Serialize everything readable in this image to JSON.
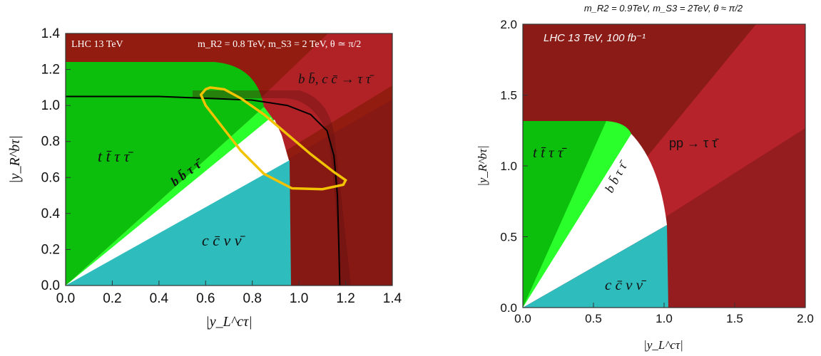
{
  "chart_data": [
    {
      "type": "area",
      "panel": "left",
      "xlim": [
        0,
        1.4
      ],
      "ylim": [
        0,
        1.4
      ],
      "xticks": [
        "0.0",
        "0.2",
        "0.4",
        "0.6",
        "0.8",
        "1.0",
        "1.2",
        "1.4"
      ],
      "yticks": [
        "0.0",
        "0.2",
        "0.4",
        "0.6",
        "0.8",
        "1.0",
        "1.2",
        "1.4"
      ],
      "xlabel": "|y_L^cτ|",
      "ylabel": "|y_R^bτ|",
      "annotations": {
        "experiment": "LHC 13 TeV",
        "params": "m_R2 = 0.8 TeV,  m_S3 = 2 TeV,  θ ≃ π/2",
        "region_tt": "t t̄ τ τ̄",
        "region_bb": "b b̄ τ τ̄",
        "region_cc": "c c̄ ν ν̄",
        "region_ditau": "b b̄, c c̄ → τ τ̄"
      },
      "regions": {
        "tt_boundary_y": 1.25,
        "bb_wedge_slopes": [
          1.0,
          1.45
        ],
        "cc_wedge_slope": 0.71,
        "cc_boundary_x": 0.97,
        "ditau_excluded_radius_approx": 0.97
      },
      "black_curve": {
        "x": [
          0.0,
          0.4,
          0.6,
          0.8,
          0.95,
          1.05,
          1.12,
          1.15,
          1.165,
          1.17,
          1.175
        ],
        "y": [
          1.05,
          1.05,
          1.04,
          1.03,
          1.0,
          0.95,
          0.86,
          0.72,
          0.5,
          0.25,
          0.0
        ]
      },
      "yellow_contour": {
        "x": [
          0.6,
          0.62,
          0.68,
          0.75,
          0.85,
          0.95,
          1.05,
          1.15,
          1.2,
          1.19,
          1.1,
          0.97,
          0.85,
          0.75,
          0.66,
          0.6,
          0.58,
          0.6
        ],
        "y": [
          1.09,
          1.1,
          1.09,
          1.04,
          0.95,
          0.84,
          0.73,
          0.63,
          0.585,
          0.56,
          0.535,
          0.54,
          0.62,
          0.75,
          0.9,
          1.0,
          1.06,
          1.09
        ]
      }
    },
    {
      "type": "area",
      "panel": "right",
      "title": "m_R2 = 0.9TeV, m_S3 = 2TeV, θ ≈ π/2",
      "xlim": [
        0,
        2.0
      ],
      "ylim": [
        0,
        2.0
      ],
      "xticks": [
        "0.0",
        "0.5",
        "1.0",
        "1.5",
        "2.0"
      ],
      "yticks": [
        "0.0",
        "0.5",
        "1.0",
        "1.5",
        "2.0"
      ],
      "xlabel": "|y_L^cτ|",
      "ylabel": "|y_R^bτ|",
      "annotations": {
        "experiment": "LHC 13 TeV,  100 fb⁻¹",
        "region_tt": "t t̄ τ τ̄",
        "region_bb": "b b̄ τ τ̄",
        "region_cc": "c c̄ ν ν̄",
        "region_ditau": "pp → τ τ̄"
      },
      "regions": {
        "tt_boundary_y": 1.32,
        "bb_wedge_slopes": [
          1.2,
          1.8
        ],
        "cc_wedge_slope": 0.57,
        "cc_boundary_x": 1.03
      }
    }
  ],
  "colors": {
    "green": "#0cbf0c",
    "light_green": "#2bff2b",
    "cyan": "#2ebcbc",
    "dark_red": "#931c10",
    "red": "#b6232b",
    "maroon": "#8c1c1c",
    "yellow": "#f2c300"
  }
}
